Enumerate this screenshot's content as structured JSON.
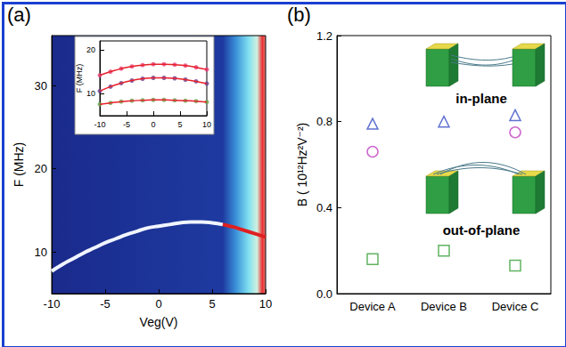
{
  "chart_data": [
    {
      "type": "line",
      "label": "(a)",
      "xlabel": "Veg(V)",
      "ylabel": "F (MHz)",
      "xlim": [
        -10,
        10
      ],
      "xticks": [
        -10,
        -5,
        0,
        5,
        10
      ],
      "ylim": [
        5,
        36
      ],
      "yticks": [
        10,
        20,
        30
      ],
      "series": [
        {
          "color": "#f0f4ff",
          "x": [
            -10,
            -9,
            -8,
            -7,
            -6,
            -5,
            -4,
            -3,
            -2,
            -1,
            0,
            1,
            2,
            3,
            4,
            5,
            6
          ],
          "values": [
            7.7,
            8.5,
            9.2,
            9.9,
            10.5,
            11.1,
            11.6,
            12.1,
            12.5,
            12.9,
            13.1,
            13.3,
            13.5,
            13.6,
            13.6,
            13.5,
            13.3
          ]
        },
        {
          "color": "#e02020",
          "x": [
            6,
            7,
            8,
            9,
            10
          ],
          "values": [
            13.3,
            13.0,
            12.6,
            12.2,
            11.8
          ]
        }
      ]
    },
    {
      "type": "scatter",
      "ylabel": "F (MHz)",
      "xlim": [
        -10,
        10
      ],
      "xticks": [
        -10,
        -5,
        0,
        5,
        10
      ],
      "ylim": [
        5,
        22
      ],
      "yticks": [
        10,
        20
      ],
      "x": [
        -10,
        -8,
        -6,
        -4,
        -2,
        0,
        2,
        4,
        6,
        8,
        10
      ],
      "series": [
        {
          "color": "#e8407a",
          "marker": "circle",
          "values": [
            14.2,
            15.0,
            15.7,
            16.2,
            16.5,
            16.7,
            16.7,
            16.6,
            16.4,
            16.0,
            15.5
          ]
        },
        {
          "color": "#6a3d8f",
          "marker": "circle",
          "values": [
            10.6,
            11.6,
            12.4,
            13.0,
            13.4,
            13.6,
            13.6,
            13.5,
            13.2,
            12.8,
            12.3
          ]
        },
        {
          "color": "#6aa84f",
          "marker": "circle",
          "values": [
            7.6,
            7.9,
            8.2,
            8.4,
            8.5,
            8.6,
            8.6,
            8.5,
            8.4,
            8.3,
            8.1
          ]
        },
        {
          "type": "line",
          "color": "#e8202a",
          "values": [
            14.2,
            15.0,
            15.7,
            16.2,
            16.5,
            16.7,
            16.7,
            16.6,
            16.4,
            16.0,
            15.5
          ]
        },
        {
          "type": "line",
          "color": "#e8202a",
          "values": [
            10.6,
            11.6,
            12.4,
            13.0,
            13.4,
            13.6,
            13.6,
            13.5,
            13.2,
            12.8,
            12.3
          ]
        },
        {
          "type": "line",
          "color": "#e8202a",
          "values": [
            7.6,
            7.9,
            8.2,
            8.4,
            8.5,
            8.6,
            8.6,
            8.5,
            8.4,
            8.3,
            8.1
          ]
        }
      ]
    },
    {
      "type": "scatter",
      "label": "(b)",
      "ylabel": "B ( 10¹²Hz²V⁻²)",
      "categories": [
        "Device A",
        "Device B",
        "Device C"
      ],
      "ylim": [
        0,
        1.2
      ],
      "yticks": [
        {
          "value": 0,
          "label": "0.0"
        },
        0.4,
        0.8,
        1.2
      ],
      "annotations": [
        "in-plane",
        "out-of-plane"
      ],
      "series": [
        {
          "color": "#3a4fc4",
          "marker": "open-triangle",
          "values": [
            0.79,
            0.8,
            0.83
          ]
        },
        {
          "color": "#c040c0",
          "marker": "open-circle",
          "values": [
            0.66,
            null,
            0.75
          ]
        },
        {
          "color": "#3aa03a",
          "marker": "open-square",
          "values": [
            0.16,
            0.2,
            0.13
          ]
        }
      ]
    }
  ]
}
